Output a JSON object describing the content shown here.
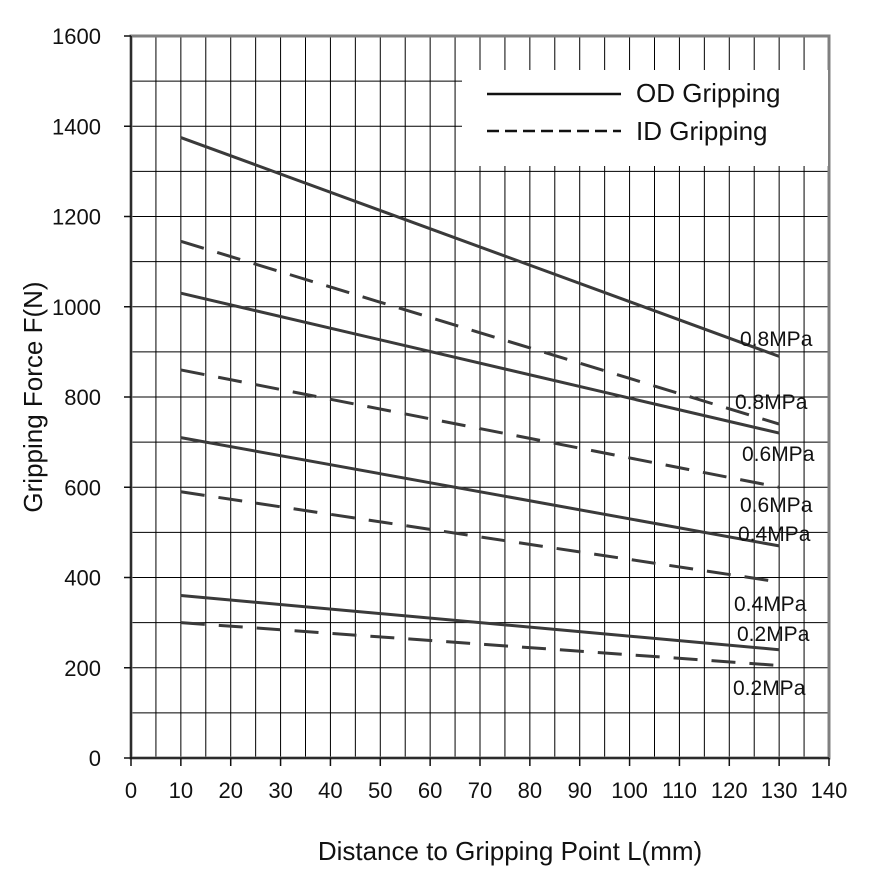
{
  "chart_data": {
    "type": "line",
    "xlabel": "Distance to Gripping Point L(mm)",
    "ylabel": "Gripping Force F(N)",
    "xlim": [
      0,
      140
    ],
    "ylim": [
      0,
      1600
    ],
    "xticks": [
      0,
      10,
      20,
      30,
      40,
      50,
      60,
      70,
      80,
      90,
      100,
      110,
      120,
      130,
      140
    ],
    "yticks": [
      0,
      200,
      400,
      600,
      800,
      1000,
      1200,
      1400,
      1600
    ],
    "grid": true,
    "legend_position": "top-right",
    "legend": [
      {
        "name": "OD Gripping",
        "style": "solid"
      },
      {
        "name": "ID Gripping",
        "style": "dashed"
      }
    ],
    "series": [
      {
        "group": "OD Gripping",
        "label": "0.8MPa",
        "style": "solid",
        "x": [
          10,
          130
        ],
        "y": [
          1375,
          890
        ]
      },
      {
        "group": "ID Gripping",
        "label": "0.8MPa",
        "style": "dashed",
        "x": [
          10,
          130
        ],
        "y": [
          1145,
          740
        ]
      },
      {
        "group": "OD Gripping",
        "label": "0.6MPa",
        "style": "solid",
        "x": [
          10,
          130
        ],
        "y": [
          1030,
          720
        ]
      },
      {
        "group": "ID Gripping",
        "label": "0.6MPa",
        "style": "dashed",
        "x": [
          10,
          130
        ],
        "y": [
          860,
          600
        ]
      },
      {
        "group": "OD Gripping",
        "label": "0.4MPa",
        "style": "solid",
        "x": [
          10,
          130
        ],
        "y": [
          710,
          470
        ]
      },
      {
        "group": "ID Gripping",
        "label": "0.4MPa",
        "style": "dashed",
        "x": [
          10,
          130
        ],
        "y": [
          590,
          390
        ]
      },
      {
        "group": "OD Gripping",
        "label": "0.2MPa",
        "style": "solid",
        "x": [
          10,
          130
        ],
        "y": [
          360,
          240
        ]
      },
      {
        "group": "ID Gripping",
        "label": "0.2MPa",
        "style": "dashed",
        "x": [
          10,
          130
        ],
        "y": [
          300,
          205
        ]
      }
    ],
    "colors": {
      "line": "#3a3a3a",
      "grid": "#000000",
      "frame": "#808080"
    }
  }
}
